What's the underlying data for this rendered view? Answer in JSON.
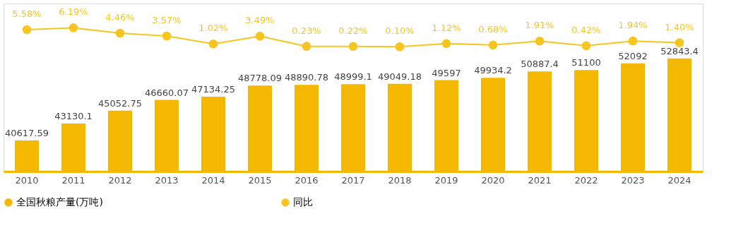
{
  "chart_data": {
    "type": "bar",
    "categories": [
      "2010",
      "2011",
      "2012",
      "2013",
      "2014",
      "2015",
      "2016",
      "2017",
      "2018",
      "2019",
      "2020",
      "2021",
      "2022",
      "2023",
      "2024"
    ],
    "series": [
      {
        "name": "全国秋粮产量(万吨)",
        "color": "#f5b800",
        "values": [
          40617.59,
          43130.1,
          45052.75,
          46660.07,
          47134.25,
          48778.09,
          48890.78,
          48999.1,
          49049.18,
          49597,
          49934.2,
          50887.4,
          51100,
          52092,
          52843.4
        ],
        "value_labels": [
          "40617.59",
          "43130.1",
          "45052.75",
          "46660.07",
          "47134.25",
          "48778.09",
          "48890.78",
          "48999.1",
          "49049.18",
          "49597",
          "49934.2",
          "50887.4",
          "51100",
          "52092",
          "52843.4"
        ]
      },
      {
        "name": "同比",
        "type": "line",
        "axis": "y2",
        "color": "#f7c520",
        "marker": "circle",
        "values": [
          5.58,
          6.19,
          4.46,
          3.57,
          1.02,
          3.49,
          0.23,
          0.22,
          0.1,
          1.12,
          0.68,
          1.91,
          0.42,
          1.94,
          1.4
        ],
        "value_labels": [
          "5.58%",
          "6.19%",
          "4.46%",
          "3.57%",
          "1.02%",
          "3.49%",
          "0.23%",
          "0.22%",
          "0.10%",
          "1.12%",
          "0.68%",
          "1.91%",
          "0.42%",
          "1.94%",
          "1.40%"
        ]
      }
    ],
    "ylim": [
      36000,
      61000
    ],
    "y2lim": [
      -40,
      14
    ],
    "tick_labels": "x",
    "grid": false,
    "legend": "bottom"
  }
}
